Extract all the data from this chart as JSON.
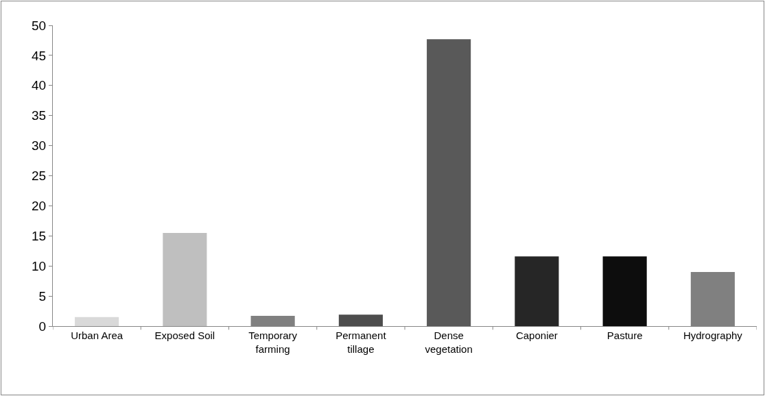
{
  "chart_data": {
    "type": "bar",
    "categories": [
      "Urban Area",
      "Exposed Soil",
      "Temporary farming",
      "Permanent tillage",
      "Dense vegetation",
      "Caponier",
      "Pasture",
      "Hydrography"
    ],
    "values": [
      1.5,
      15.5,
      1.7,
      1.9,
      47.7,
      11.6,
      11.6,
      9.0
    ],
    "colors": [
      "#d9d9d9",
      "#bfbfbf",
      "#808080",
      "#4d4d4d",
      "#595959",
      "#262626",
      "#0d0d0d",
      "#808080"
    ],
    "ylim": [
      0,
      50
    ],
    "yticks": [
      0,
      5,
      10,
      15,
      20,
      25,
      30,
      35,
      40,
      45,
      50
    ],
    "grid": false,
    "legend": false
  }
}
